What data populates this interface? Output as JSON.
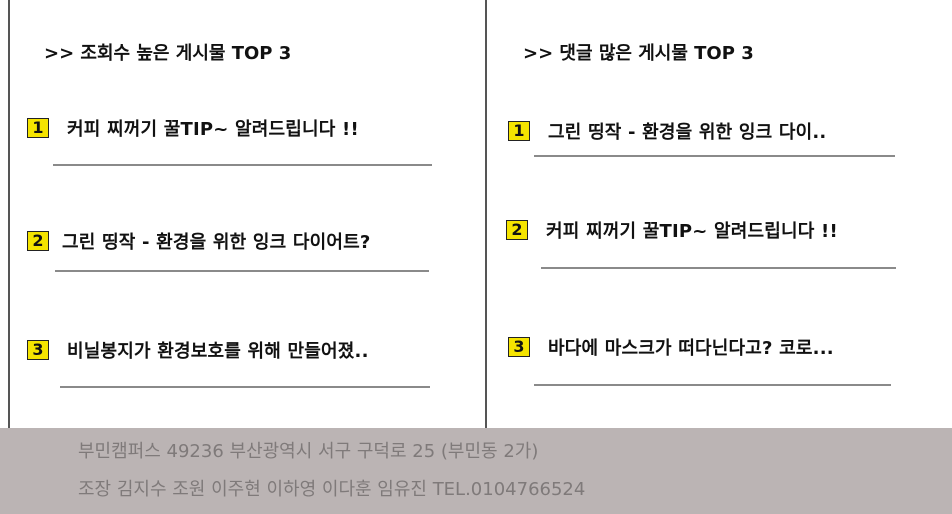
{
  "views_panel": {
    "title": ">> 조회수 높은 게시물 TOP 3",
    "items": [
      {
        "rank": "1",
        "title": "커피 찌꺼기 꿀TIP~ 알려드립니다 !!"
      },
      {
        "rank": "2",
        "title": "그린 띵작 - 환경을 위한 잉크 다이어트?"
      },
      {
        "rank": "3",
        "title": "비닐봉지가 환경보호를 위해 만들어졌.."
      }
    ]
  },
  "comments_panel": {
    "title": ">> 댓글 많은 게시물 TOP 3",
    "items": [
      {
        "rank": "1",
        "title": "그린 띵작 - 환경을 위한 잉크 다이.."
      },
      {
        "rank": "2",
        "title": "커피 찌꺼기 꿀TIP~ 알려드립니다 !!"
      },
      {
        "rank": "3",
        "title": "바다에 마스크가 떠다닌다고? 코로..."
      }
    ]
  },
  "footer": {
    "address": "부민캠퍼스 49236 부산광역시 서구 구덕로 25 (부민동 2가)",
    "members": "조장 김지수 조원 이주현 이하영 이다훈 임유진  TEL.0104766524"
  },
  "colors": {
    "rank_badge": "#f5e400",
    "footer_bg": "#bbb4b4",
    "footer_text": "#7f7a7a"
  }
}
